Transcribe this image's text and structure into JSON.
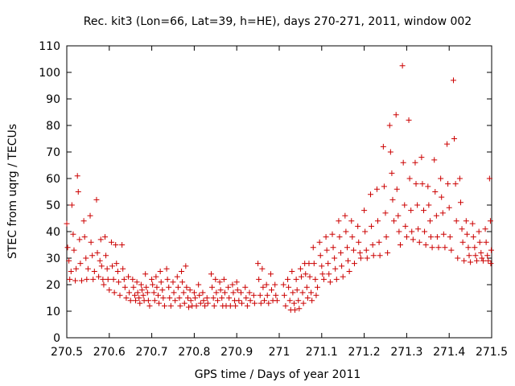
{
  "chart_data": {
    "type": "scatter",
    "title": "Rec. kit3 (Lon=66, Lat=39, h=HE), days 270-271, 2011, window 002",
    "xlabel": "GPS time / Days of year 2011",
    "ylabel": "STEC from uqrg / TECUs",
    "xlim": [
      270.5,
      271.5
    ],
    "ylim": [
      0,
      110
    ],
    "xticks": [
      270.5,
      270.6,
      270.7,
      270.8,
      270.9,
      271.0,
      271.1,
      271.2,
      271.3,
      271.4,
      271.5
    ],
    "xtick_labels": [
      "270.5",
      "270.6",
      "270.7",
      "270.8",
      "270.9",
      "271",
      "271.1",
      "271.2",
      "271.3",
      "271.4",
      "271.5"
    ],
    "yticks": [
      0,
      10,
      20,
      30,
      40,
      50,
      60,
      70,
      80,
      90,
      100,
      110
    ],
    "ytick_labels": [
      "0",
      "10",
      "20",
      "30",
      "40",
      "50",
      "60",
      "70",
      "80",
      "90",
      "100",
      "110"
    ],
    "grid": false,
    "legend": "none",
    "marker": "plus",
    "color": "#cc0000",
    "points": [
      [
        270.5,
        43
      ],
      [
        270.502,
        34
      ],
      [
        270.505,
        29
      ],
      [
        270.507,
        22
      ],
      [
        270.51,
        25
      ],
      [
        270.512,
        50
      ],
      [
        270.515,
        39
      ],
      [
        270.517,
        33
      ],
      [
        270.52,
        21.5
      ],
      [
        270.522,
        26
      ],
      [
        270.525,
        61
      ],
      [
        270.527,
        55
      ],
      [
        270.53,
        37
      ],
      [
        270.532,
        28
      ],
      [
        270.535,
        21.5
      ],
      [
        270.54,
        44
      ],
      [
        270.542,
        38
      ],
      [
        270.545,
        30
      ],
      [
        270.547,
        22
      ],
      [
        270.55,
        26
      ],
      [
        270.555,
        46
      ],
      [
        270.557,
        36
      ],
      [
        270.56,
        31
      ],
      [
        270.562,
        22
      ],
      [
        270.565,
        25
      ],
      [
        270.57,
        52
      ],
      [
        270.572,
        32
      ],
      [
        270.575,
        23
      ],
      [
        270.578,
        29
      ],
      [
        270.58,
        37
      ],
      [
        270.582,
        27
      ],
      [
        270.585,
        22
      ],
      [
        270.587,
        20
      ],
      [
        270.59,
        38
      ],
      [
        270.592,
        31
      ],
      [
        270.595,
        26
      ],
      [
        270.597,
        22
      ],
      [
        270.6,
        18
      ],
      [
        270.605,
        36
      ],
      [
        270.607,
        27
      ],
      [
        270.61,
        22
      ],
      [
        270.612,
        17
      ],
      [
        270.615,
        35
      ],
      [
        270.617,
        28
      ],
      [
        270.62,
        25
      ],
      [
        270.622,
        21
      ],
      [
        270.625,
        16
      ],
      [
        270.63,
        35
      ],
      [
        270.632,
        26
      ],
      [
        270.635,
        22
      ],
      [
        270.637,
        19
      ],
      [
        270.64,
        15
      ],
      [
        270.645,
        23
      ],
      [
        270.647,
        17
      ],
      [
        270.65,
        14
      ],
      [
        270.655,
        22
      ],
      [
        270.657,
        19
      ],
      [
        270.66,
        16
      ],
      [
        270.662,
        14
      ],
      [
        270.665,
        21
      ],
      [
        270.667,
        17
      ],
      [
        270.67,
        15
      ],
      [
        270.672,
        13
      ],
      [
        270.675,
        20
      ],
      [
        270.677,
        18
      ],
      [
        270.68,
        16
      ],
      [
        270.682,
        14
      ],
      [
        270.685,
        24
      ],
      [
        270.687,
        19
      ],
      [
        270.69,
        17
      ],
      [
        270.692,
        14
      ],
      [
        270.695,
        12
      ],
      [
        270.7,
        22
      ],
      [
        270.702,
        20
      ],
      [
        270.705,
        17
      ],
      [
        270.707,
        14
      ],
      [
        270.71,
        23
      ],
      [
        270.712,
        19
      ],
      [
        270.715,
        16
      ],
      [
        270.717,
        13
      ],
      [
        270.72,
        25
      ],
      [
        270.722,
        21
      ],
      [
        270.725,
        18
      ],
      [
        270.727,
        15
      ],
      [
        270.73,
        12
      ],
      [
        270.735,
        26
      ],
      [
        270.737,
        22
      ],
      [
        270.74,
        19
      ],
      [
        270.742,
        15
      ],
      [
        270.745,
        12
      ],
      [
        270.75,
        21
      ],
      [
        270.752,
        17
      ],
      [
        270.755,
        14
      ],
      [
        270.76,
        23
      ],
      [
        270.762,
        19
      ],
      [
        270.765,
        15
      ],
      [
        270.767,
        12
      ],
      [
        270.77,
        25
      ],
      [
        270.772,
        21
      ],
      [
        270.775,
        17
      ],
      [
        270.777,
        13
      ],
      [
        270.78,
        27
      ],
      [
        270.782,
        19
      ],
      [
        270.785,
        15
      ],
      [
        270.787,
        11.5
      ],
      [
        270.79,
        18
      ],
      [
        270.792,
        14
      ],
      [
        270.795,
        12
      ],
      [
        270.8,
        17
      ],
      [
        270.802,
        15
      ],
      [
        270.805,
        12
      ],
      [
        270.81,
        20
      ],
      [
        270.812,
        16
      ],
      [
        270.815,
        13
      ],
      [
        270.82,
        17
      ],
      [
        270.822,
        14
      ],
      [
        270.825,
        12
      ],
      [
        270.83,
        15
      ],
      [
        270.832,
        13
      ],
      [
        270.84,
        24
      ],
      [
        270.842,
        19
      ],
      [
        270.845,
        15
      ],
      [
        270.847,
        12
      ],
      [
        270.85,
        22
      ],
      [
        270.852,
        17
      ],
      [
        270.855,
        14
      ],
      [
        270.86,
        21
      ],
      [
        270.862,
        18
      ],
      [
        270.865,
        15
      ],
      [
        270.867,
        12
      ],
      [
        270.87,
        22
      ],
      [
        270.872,
        17
      ],
      [
        270.875,
        12
      ],
      [
        270.88,
        19
      ],
      [
        270.882,
        15
      ],
      [
        270.885,
        12
      ],
      [
        270.89,
        20
      ],
      [
        270.892,
        17
      ],
      [
        270.895,
        14
      ],
      [
        270.897,
        12
      ],
      [
        270.9,
        21
      ],
      [
        270.902,
        18
      ],
      [
        270.905,
        14
      ],
      [
        270.91,
        17
      ],
      [
        270.912,
        13
      ],
      [
        270.92,
        19
      ],
      [
        270.922,
        15
      ],
      [
        270.925,
        12
      ],
      [
        270.93,
        17
      ],
      [
        270.932,
        14
      ],
      [
        270.94,
        16
      ],
      [
        270.942,
        13
      ],
      [
        270.95,
        28
      ],
      [
        270.952,
        22
      ],
      [
        270.955,
        16
      ],
      [
        270.957,
        13
      ],
      [
        270.96,
        26
      ],
      [
        270.962,
        19
      ],
      [
        270.965,
        14
      ],
      [
        270.97,
        20
      ],
      [
        270.972,
        16
      ],
      [
        270.975,
        13
      ],
      [
        270.98,
        24
      ],
      [
        270.982,
        18
      ],
      [
        270.985,
        14
      ],
      [
        270.99,
        20
      ],
      [
        270.992,
        16
      ],
      [
        270.995,
        14
      ],
      [
        271.01,
        20
      ],
      [
        271.012,
        16
      ],
      [
        271.015,
        12
      ],
      [
        271.02,
        22
      ],
      [
        271.022,
        19
      ],
      [
        271.025,
        14
      ],
      [
        271.027,
        10.5
      ],
      [
        271.03,
        25
      ],
      [
        271.032,
        17
      ],
      [
        271.035,
        13
      ],
      [
        271.037,
        10.5
      ],
      [
        271.04,
        22
      ],
      [
        271.042,
        18
      ],
      [
        271.045,
        14
      ],
      [
        271.047,
        11
      ],
      [
        271.05,
        26
      ],
      [
        271.052,
        23
      ],
      [
        271.055,
        17
      ],
      [
        271.057,
        13
      ],
      [
        271.06,
        28
      ],
      [
        271.062,
        24
      ],
      [
        271.065,
        19
      ],
      [
        271.067,
        15
      ],
      [
        271.07,
        28
      ],
      [
        271.072,
        23
      ],
      [
        271.075,
        17
      ],
      [
        271.077,
        14
      ],
      [
        271.08,
        34
      ],
      [
        271.082,
        28
      ],
      [
        271.085,
        22
      ],
      [
        271.087,
        16
      ],
      [
        271.09,
        19
      ],
      [
        271.095,
        36
      ],
      [
        271.097,
        31
      ],
      [
        271.1,
        27
      ],
      [
        271.102,
        24
      ],
      [
        271.105,
        22
      ],
      [
        271.11,
        38
      ],
      [
        271.112,
        33
      ],
      [
        271.115,
        28
      ],
      [
        271.117,
        24
      ],
      [
        271.12,
        21
      ],
      [
        271.125,
        39
      ],
      [
        271.127,
        34
      ],
      [
        271.13,
        30
      ],
      [
        271.132,
        26
      ],
      [
        271.135,
        22
      ],
      [
        271.14,
        44
      ],
      [
        271.142,
        38
      ],
      [
        271.145,
        32
      ],
      [
        271.147,
        27
      ],
      [
        271.15,
        23
      ],
      [
        271.155,
        46
      ],
      [
        271.157,
        40
      ],
      [
        271.16,
        34
      ],
      [
        271.162,
        29
      ],
      [
        271.165,
        25
      ],
      [
        271.17,
        44
      ],
      [
        271.172,
        38
      ],
      [
        271.175,
        33
      ],
      [
        271.177,
        28
      ],
      [
        271.185,
        42
      ],
      [
        271.187,
        36
      ],
      [
        271.19,
        32
      ],
      [
        271.192,
        30
      ],
      [
        271.2,
        48
      ],
      [
        271.202,
        40
      ],
      [
        271.205,
        33
      ],
      [
        271.207,
        30
      ],
      [
        271.215,
        54
      ],
      [
        271.217,
        42
      ],
      [
        271.22,
        35
      ],
      [
        271.222,
        31
      ],
      [
        271.23,
        56
      ],
      [
        271.232,
        44
      ],
      [
        271.235,
        36
      ],
      [
        271.237,
        31
      ],
      [
        271.245,
        72
      ],
      [
        271.247,
        57
      ],
      [
        271.25,
        47
      ],
      [
        271.252,
        38
      ],
      [
        271.255,
        32
      ],
      [
        271.26,
        80
      ],
      [
        271.262,
        70
      ],
      [
        271.265,
        62
      ],
      [
        271.267,
        52
      ],
      [
        271.27,
        44
      ],
      [
        271.275,
        84
      ],
      [
        271.277,
        56
      ],
      [
        271.28,
        46
      ],
      [
        271.282,
        40
      ],
      [
        271.285,
        35
      ],
      [
        271.29,
        102.5
      ],
      [
        271.292,
        66
      ],
      [
        271.295,
        50
      ],
      [
        271.297,
        42
      ],
      [
        271.3,
        38
      ],
      [
        271.305,
        82
      ],
      [
        271.307,
        60
      ],
      [
        271.31,
        48
      ],
      [
        271.312,
        40
      ],
      [
        271.315,
        37
      ],
      [
        271.32,
        66
      ],
      [
        271.322,
        58
      ],
      [
        271.325,
        50
      ],
      [
        271.327,
        41
      ],
      [
        271.33,
        36
      ],
      [
        271.335,
        68
      ],
      [
        271.337,
        58
      ],
      [
        271.34,
        48
      ],
      [
        271.342,
        40
      ],
      [
        271.345,
        35
      ],
      [
        271.35,
        57
      ],
      [
        271.352,
        50
      ],
      [
        271.355,
        44
      ],
      [
        271.357,
        38
      ],
      [
        271.36,
        34
      ],
      [
        271.365,
        67
      ],
      [
        271.367,
        55
      ],
      [
        271.37,
        46
      ],
      [
        271.372,
        38
      ],
      [
        271.375,
        34
      ],
      [
        271.38,
        60
      ],
      [
        271.382,
        53
      ],
      [
        271.385,
        47
      ],
      [
        271.387,
        39
      ],
      [
        271.39,
        34
      ],
      [
        271.395,
        73
      ],
      [
        271.397,
        58
      ],
      [
        271.4,
        49
      ],
      [
        271.402,
        38
      ],
      [
        271.405,
        33
      ],
      [
        271.41,
        97
      ],
      [
        271.412,
        75
      ],
      [
        271.415,
        58
      ],
      [
        271.417,
        44
      ],
      [
        271.42,
        30
      ],
      [
        271.425,
        60
      ],
      [
        271.427,
        51
      ],
      [
        271.43,
        41
      ],
      [
        271.432,
        36
      ],
      [
        271.435,
        29
      ],
      [
        271.44,
        44
      ],
      [
        271.442,
        39
      ],
      [
        271.445,
        34
      ],
      [
        271.447,
        31
      ],
      [
        271.45,
        28.5
      ],
      [
        271.455,
        43
      ],
      [
        271.457,
        38
      ],
      [
        271.46,
        34
      ],
      [
        271.462,
        31
      ],
      [
        271.465,
        29
      ],
      [
        271.47,
        40
      ],
      [
        271.472,
        36
      ],
      [
        271.475,
        32
      ],
      [
        271.477,
        30
      ],
      [
        271.48,
        29
      ],
      [
        271.485,
        41
      ],
      [
        271.487,
        36
      ],
      [
        271.49,
        31
      ],
      [
        271.492,
        29
      ],
      [
        271.495,
        60
      ],
      [
        271.497,
        44
      ],
      [
        271.499,
        33
      ],
      [
        271.498,
        28
      ]
    ]
  }
}
